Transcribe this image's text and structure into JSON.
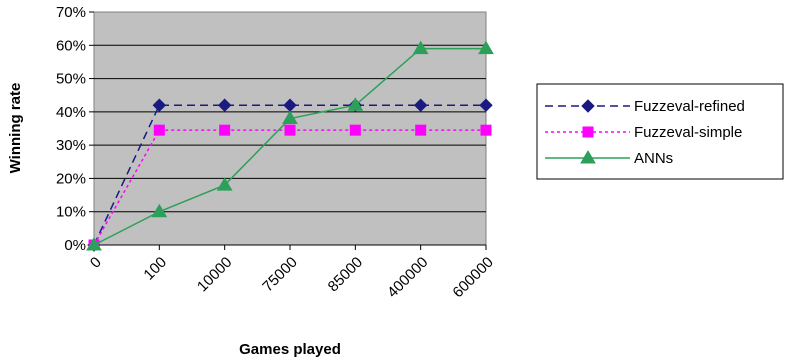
{
  "chart_data": {
    "type": "line",
    "categories": [
      "0",
      "100",
      "10000",
      "75000",
      "85000",
      "400000",
      "600000"
    ],
    "series": [
      {
        "name": "Fuzzeval-refined",
        "values": [
          0,
          42,
          42,
          42,
          42,
          42,
          42
        ],
        "color": "#1a1a80",
        "line_style": "dashed",
        "marker": "diamond"
      },
      {
        "name": "Fuzzeval-simple",
        "values": [
          0,
          34.5,
          34.5,
          34.5,
          34.5,
          34.5,
          34.5
        ],
        "color": "#ff00ff",
        "line_style": "dotted",
        "marker": "square"
      },
      {
        "name": "ANNs",
        "values": [
          0,
          10,
          18,
          38,
          42,
          59,
          59
        ],
        "color": "#2ca05a",
        "line_style": "solid",
        "marker": "triangle"
      }
    ],
    "y_ticks": [
      "0%",
      "10%",
      "20%",
      "30%",
      "40%",
      "50%",
      "60%",
      "70%"
    ],
    "ylim": [
      0,
      70
    ],
    "xlabel": "Games played",
    "ylabel": "Winning rate",
    "grid": true,
    "plot_background": "#c0c0c0",
    "legend_position": "right"
  }
}
